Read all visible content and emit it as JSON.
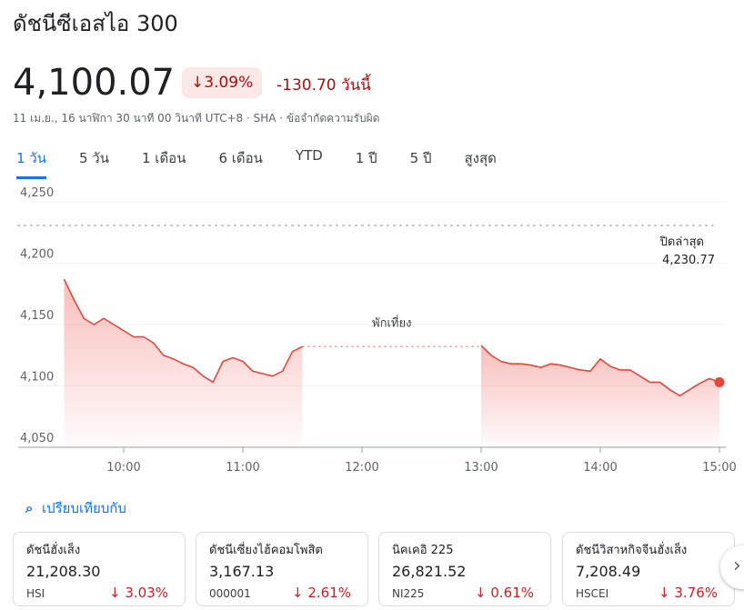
{
  "header": {
    "title": "ดัชนีซีเอสไอ 300",
    "price": "4,100.07",
    "change_percent": "3.09%",
    "change": "-130.70",
    "change_period": "วันนี้",
    "info": "11 เม.ย., 16 นาฬิกา 30 นาที 00 วินาที UTC+8 · SHA · ข้อจำกัดความรับผิด"
  },
  "tabs": [
    "1 วัน",
    "5 วัน",
    "1 เดือน",
    "6 เดือน",
    "YTD",
    "1 ปี",
    "5 ปี",
    "สูงสุด"
  ],
  "chart_data": {
    "type": "line",
    "color": "#e8453c",
    "x": [
      570,
      575,
      580,
      585,
      590,
      595,
      600,
      605,
      610,
      615,
      620,
      625,
      630,
      635,
      640,
      645,
      650,
      655,
      660,
      665,
      670,
      675,
      680,
      685,
      690,
      780,
      785,
      790,
      795,
      800,
      805,
      810,
      815,
      820,
      825,
      830,
      835,
      840,
      845,
      850,
      855,
      860,
      865,
      870,
      875,
      880,
      885,
      890,
      895,
      900
    ],
    "series": [
      {
        "values": [
          4187,
          4170,
          4155,
          4150,
          4155,
          4150,
          4145,
          4140,
          4140,
          4135,
          4125,
          4122,
          4118,
          4115,
          4108,
          4103,
          4120,
          4123,
          4120,
          4112,
          4110,
          4108,
          4112,
          4128,
          4132,
          4133,
          4125,
          4120,
          4118,
          4118,
          4117,
          4115,
          4118,
          4117,
          4115,
          4113,
          4112,
          4122,
          4116,
          4113,
          4113,
          4108,
          4103,
          4103,
          4097,
          4092,
          4097,
          4102,
          4106,
          4103
        ]
      }
    ],
    "xlim": [
      570,
      900
    ],
    "xticks": [
      {
        "value": 600,
        "label": "10:00"
      },
      {
        "value": 660,
        "label": "11:00"
      },
      {
        "value": 720,
        "label": "12:00"
      },
      {
        "value": 780,
        "label": "13:00"
      },
      {
        "value": 840,
        "label": "14:00"
      },
      {
        "value": 900,
        "label": "15:00"
      }
    ],
    "ylim": [
      4050,
      4250
    ],
    "yticks": [
      {
        "value": 4050,
        "label": "4,050"
      },
      {
        "value": 4100,
        "label": "4,100"
      },
      {
        "value": 4150,
        "label": "4,150"
      },
      {
        "value": 4200,
        "label": "4,200"
      },
      {
        "value": 4250,
        "label": "4,250"
      }
    ],
    "grid": true,
    "reference": {
      "label": "ปิดล่าสุด",
      "value": 4230.77,
      "value_label": "4,230.77"
    },
    "annotation": "พักเที่ยง"
  },
  "compare": {
    "title": "เปรียบเทียบกับ",
    "cards": [
      {
        "name": "ดัชนีฮั่งเส็ง",
        "price": "21,208.30",
        "symbol": "HSI",
        "change": "3.03%"
      },
      {
        "name": "ดัชนีเซี่ยงไฮ้คอมโพสิต",
        "price": "3,167.13",
        "symbol": "000001",
        "change": "2.61%"
      },
      {
        "name": "นิคเคอิ 225",
        "price": "26,821.52",
        "symbol": "NI225",
        "change": "0.61%"
      },
      {
        "name": "ดัชนีวิสาหกิจจีนฮั่งเส็ง",
        "price": "7,208.49",
        "symbol": "HSCEI",
        "change": "3.76%"
      }
    ]
  }
}
